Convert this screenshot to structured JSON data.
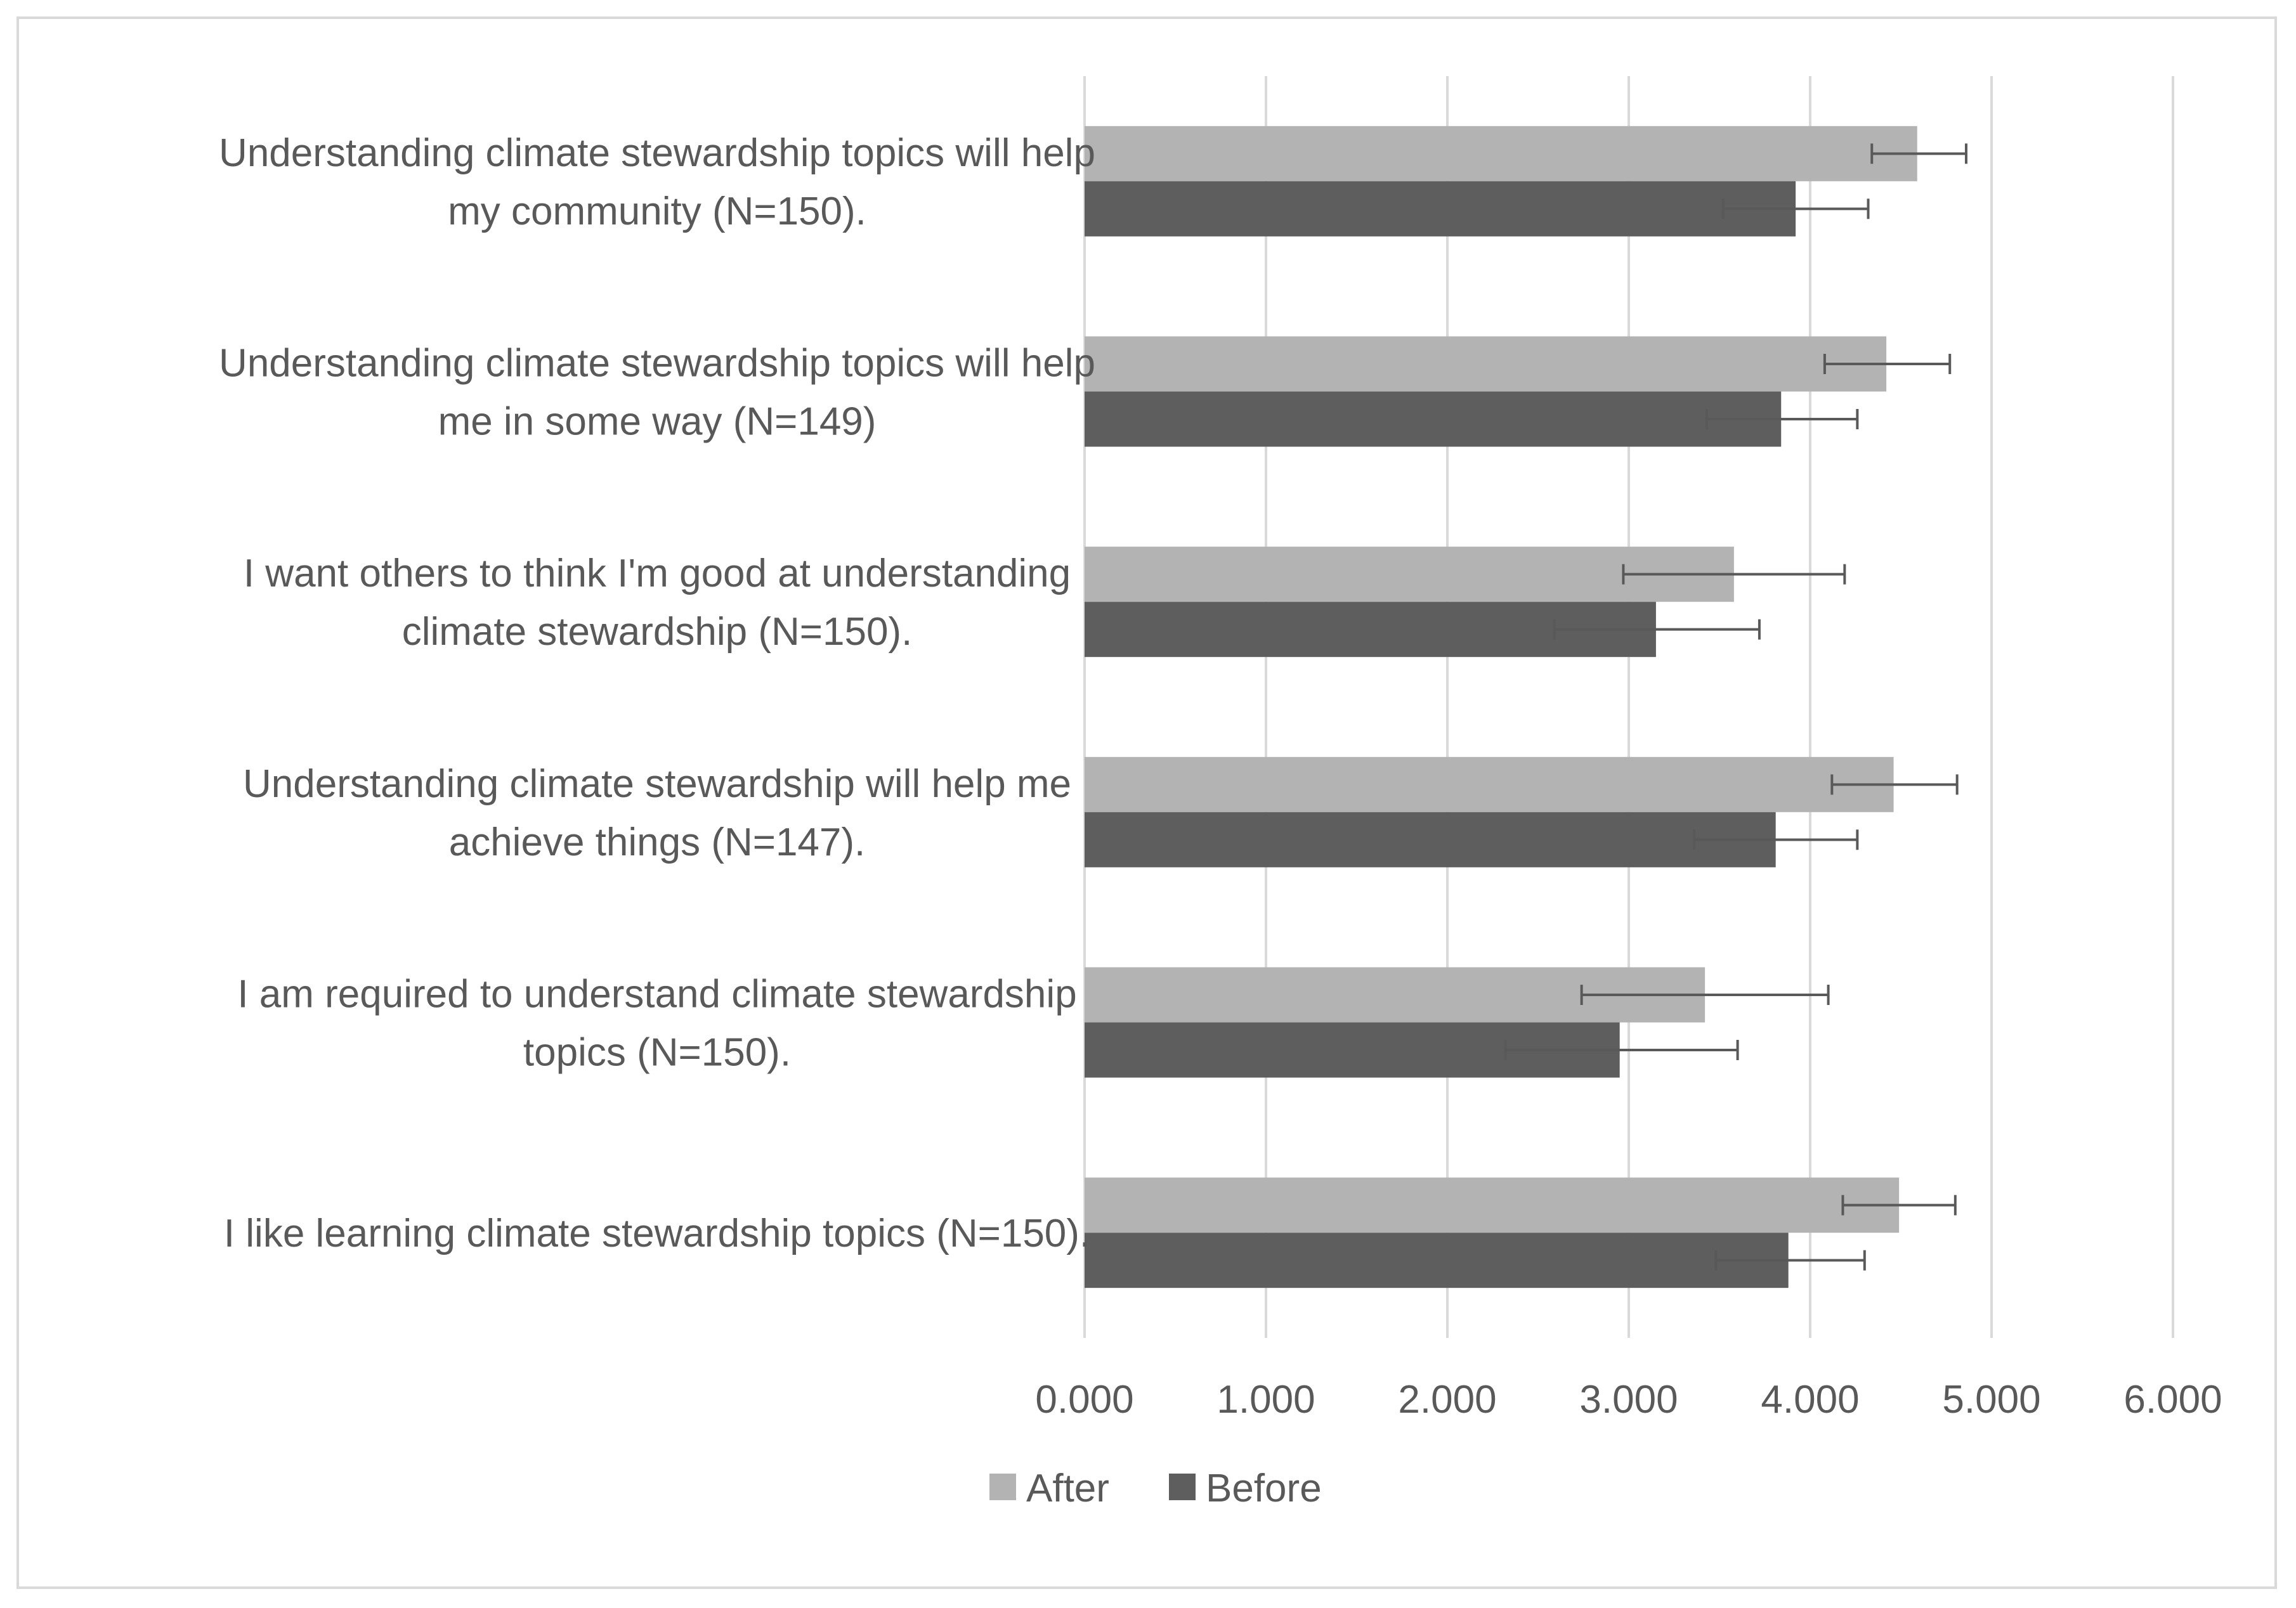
{
  "chart_data": {
    "type": "bar",
    "orientation": "horizontal",
    "categories": [
      [
        "Understanding climate stewardship topics will help",
        "my community (N=150)."
      ],
      [
        "Understanding climate stewardship topics will help",
        "me in some way (N=149)"
      ],
      [
        "I want others to think I'm good at understanding",
        "climate stewardship (N=150)."
      ],
      [
        "Understanding climate stewardship will help me",
        "achieve things (N=147)."
      ],
      [
        "I am required to understand climate stewardship",
        "topics (N=150)."
      ],
      [
        "I like learning  climate stewardship topics (N=150)."
      ]
    ],
    "series": [
      {
        "name": "After",
        "color": "#b3b3b3",
        "values": [
          4.59,
          4.42,
          3.58,
          4.46,
          3.42,
          4.49
        ],
        "error_low": [
          4.34,
          4.08,
          2.97,
          4.12,
          2.74,
          4.18
        ],
        "error_high": [
          4.86,
          4.77,
          4.19,
          4.81,
          4.1,
          4.8
        ]
      },
      {
        "name": "Before",
        "color": "#5e5e5e",
        "values": [
          3.92,
          3.84,
          3.15,
          3.81,
          2.95,
          3.88
        ],
        "error_low": [
          3.52,
          3.43,
          2.59,
          3.36,
          2.32,
          3.48
        ],
        "error_high": [
          4.32,
          4.26,
          3.72,
          4.26,
          3.6,
          4.3
        ]
      }
    ],
    "xlim": [
      0,
      6
    ],
    "ticks": [
      "0.000",
      "1.000",
      "2.000",
      "3.000",
      "4.000",
      "5.000",
      "6.000"
    ],
    "grid": true,
    "legend": [
      "After",
      "Before"
    ],
    "legend_position": "bottom"
  }
}
